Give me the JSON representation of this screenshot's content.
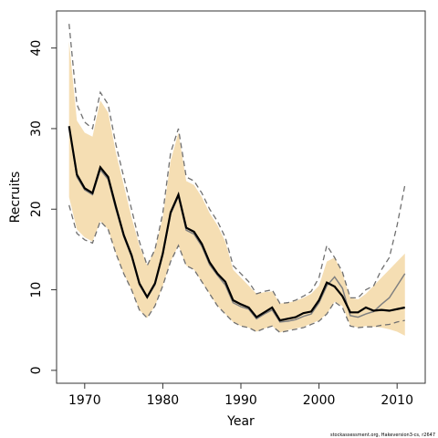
{
  "chart_data": {
    "type": "line",
    "title": "",
    "xlabel": "Year",
    "ylabel": "Recruits",
    "xlim": [
      1966.4,
      2013.6
    ],
    "ylim": [
      -1.6,
      44.6
    ],
    "xticks": [
      1970,
      1980,
      1990,
      2000,
      2010
    ],
    "yticks": [
      0,
      10,
      20,
      30,
      40
    ],
    "grid": false,
    "legend": "none",
    "colors": {
      "band": "#f5deb3",
      "median": "#000000",
      "alt_line": "#808080",
      "dashed": "#707070"
    },
    "x": [
      1968,
      1969,
      1970,
      1971,
      1972,
      1973,
      1974,
      1975,
      1976,
      1977,
      1978,
      1979,
      1980,
      1981,
      1982,
      1983,
      1984,
      1985,
      1986,
      1987,
      1988,
      1989,
      1990,
      1991,
      1992,
      1993,
      1994,
      1995,
      1996,
      1997,
      1998,
      1999,
      2000,
      2001,
      2002,
      2003,
      2004,
      2005,
      2006,
      2007,
      2008,
      2009,
      2010,
      2011
    ],
    "series": [
      {
        "name": "",
        "role": "interval",
        "lower": [
          21.5,
          17.5,
          16.5,
          16.0,
          18.5,
          17.5,
          14.5,
          12.0,
          10.0,
          7.5,
          6.5,
          8.0,
          10.5,
          13.5,
          15.5,
          13.0,
          12.5,
          11.0,
          9.5,
          8.0,
          7.0,
          6.0,
          5.5,
          5.3,
          4.8,
          5.2,
          5.5,
          4.7,
          5.0,
          5.2,
          5.4,
          5.8,
          6.2,
          7.0,
          8.5,
          8.0,
          5.6,
          5.3,
          5.5,
          5.4,
          5.3,
          5.1,
          4.8,
          4.3
        ],
        "upper": [
          40.8,
          31.0,
          29.5,
          29.0,
          33.5,
          32.0,
          27.0,
          23.0,
          19.0,
          15.5,
          13.0,
          15.0,
          19.0,
          26.0,
          29.5,
          23.5,
          23.0,
          21.5,
          19.5,
          18.0,
          16.0,
          12.5,
          11.5,
          10.5,
          9.5,
          9.7,
          9.8,
          8.3,
          8.4,
          8.6,
          9.0,
          9.5,
          10.5,
          13.5,
          14.0,
          12.0,
          9.0,
          8.8,
          9.5,
          10.5,
          11.5,
          12.5,
          13.5,
          14.5
        ]
      },
      {
        "name": "",
        "role": "median",
        "values": [
          30.3,
          24.3,
          22.6,
          22.0,
          25.2,
          24.0,
          20.3,
          16.8,
          14.3,
          10.8,
          9.1,
          10.8,
          14.5,
          19.6,
          21.8,
          17.7,
          17.2,
          15.7,
          13.4,
          12.0,
          11.0,
          8.7,
          8.2,
          7.8,
          6.6,
          7.2,
          7.8,
          6.2,
          6.4,
          6.6,
          7.1,
          7.3,
          8.7,
          10.9,
          10.4,
          9.2,
          7.2,
          7.2,
          7.8,
          7.4,
          7.5,
          7.4,
          7.6,
          7.8
        ]
      },
      {
        "name": "",
        "role": "alternative",
        "values": [
          30.3,
          24.0,
          22.4,
          21.8,
          24.9,
          23.7,
          20.0,
          16.6,
          14.1,
          10.6,
          9.0,
          10.6,
          14.3,
          19.4,
          21.6,
          17.4,
          16.9,
          15.4,
          13.1,
          11.8,
          10.6,
          8.4,
          7.9,
          7.6,
          6.4,
          7.0,
          7.5,
          6.0,
          6.1,
          6.3,
          6.7,
          7.0,
          8.4,
          10.5,
          11.6,
          10.2,
          6.8,
          6.6,
          7.0,
          7.3,
          8.2,
          9.0,
          10.5,
          12.0
        ]
      },
      {
        "name": "",
        "role": "dashed-upper",
        "values": [
          43.0,
          33.0,
          30.8,
          30.0,
          34.5,
          33.0,
          28.0,
          24.0,
          20.0,
          16.0,
          13.0,
          15.0,
          19.5,
          27.0,
          30.0,
          24.0,
          23.5,
          22.0,
          20.0,
          18.5,
          16.5,
          13.0,
          12.0,
          11.0,
          9.5,
          9.8,
          10.0,
          8.3,
          8.4,
          8.7,
          9.2,
          9.8,
          11.5,
          15.5,
          14.0,
          12.2,
          9.0,
          9.0,
          10.0,
          10.5,
          12.5,
          14.0,
          18.0,
          23.0
        ]
      },
      {
        "name": "",
        "role": "dashed-lower",
        "values": [
          20.5,
          17.0,
          16.2,
          15.8,
          18.5,
          17.5,
          14.5,
          12.0,
          10.0,
          7.5,
          6.5,
          8.0,
          10.5,
          13.5,
          15.5,
          13.0,
          12.5,
          11.0,
          9.5,
          8.0,
          7.0,
          6.0,
          5.5,
          5.3,
          4.8,
          5.2,
          5.5,
          4.7,
          4.9,
          5.1,
          5.3,
          5.7,
          6.1,
          7.0,
          8.5,
          7.8,
          5.5,
          5.3,
          5.4,
          5.4,
          5.6,
          5.7,
          6.0,
          6.2
        ]
      }
    ]
  },
  "footer": {
    "credit": "stockassessment.org, Hakeversion3-cs, r2647"
  }
}
